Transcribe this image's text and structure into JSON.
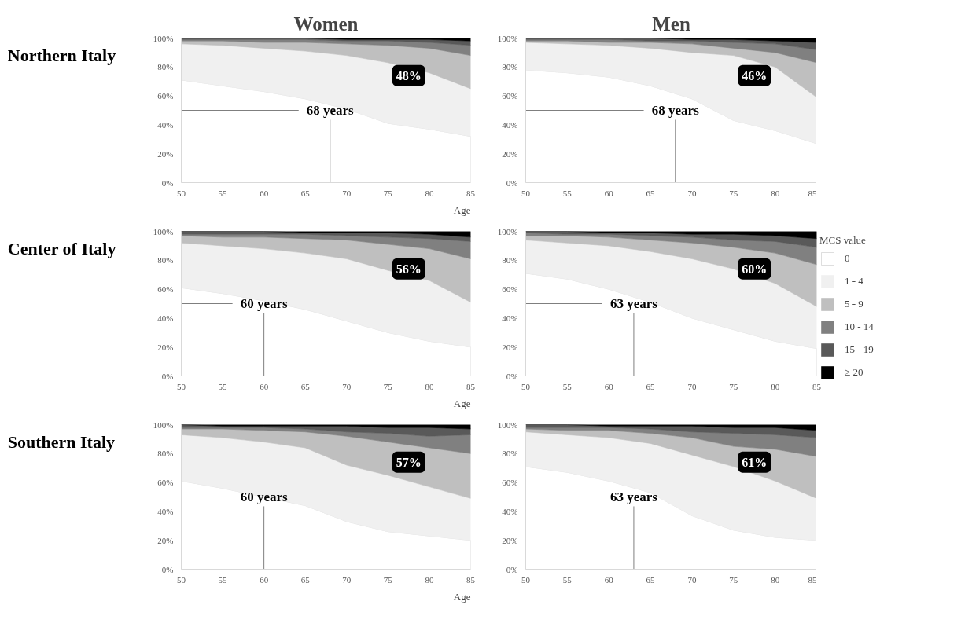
{
  "chart_data": [
    {
      "type": "area",
      "stacked": true,
      "title": "Women",
      "ylabel": "Northern Italy",
      "xlabel": "Age",
      "x": [
        50,
        55,
        60,
        65,
        70,
        75,
        80,
        85
      ],
      "xlim": [
        50,
        85
      ],
      "xticks": [
        50,
        55,
        60,
        65,
        70,
        75,
        80,
        85
      ],
      "ylim": [
        0,
        100
      ],
      "yticks": [
        {
          "value": 0,
          "label": "0%"
        },
        {
          "value": 20,
          "label": "20%"
        },
        {
          "value": 40,
          "label": "40%"
        },
        {
          "value": 60,
          "label": "60%"
        },
        {
          "value": 80,
          "label": "80%"
        },
        {
          "value": 100,
          "label": "100%"
        }
      ],
      "series": [
        {
          "color": "#ffffff",
          "values": [
            71,
            67,
            63,
            58,
            51,
            41,
            37,
            32
          ]
        },
        {
          "color": "#f0f0f0",
          "values": [
            25,
            28,
            30,
            33,
            37,
            42,
            39,
            33
          ]
        },
        {
          "color": "#bfbfbf",
          "values": [
            2,
            3,
            4,
            6,
            8,
            12,
            17,
            23
          ]
        },
        {
          "color": "#808080",
          "values": [
            1,
            1,
            2,
            2,
            2,
            3,
            4,
            7
          ]
        },
        {
          "color": "#595959",
          "values": [
            1,
            1,
            1,
            1,
            1,
            1,
            2,
            3
          ]
        },
        {
          "color": "#000000",
          "values": [
            0,
            0,
            0,
            0,
            1,
            1,
            1,
            2
          ]
        }
      ],
      "ref_lines": [
        {
          "axis": "x",
          "value": 68
        },
        {
          "axis": "y",
          "value": 50
        }
      ],
      "annotations": [
        "68 years",
        "48%"
      ]
    },
    {
      "type": "area",
      "stacked": true,
      "title": "Men",
      "x": [
        50,
        55,
        60,
        65,
        70,
        75,
        80,
        85
      ],
      "xlim": [
        50,
        85
      ],
      "xticks": [
        50,
        55,
        60,
        65,
        70,
        75,
        80,
        85
      ],
      "ylim": [
        0,
        100
      ],
      "yticks": [
        {
          "value": 0,
          "label": "0%"
        },
        {
          "value": 20,
          "label": "20%"
        },
        {
          "value": 40,
          "label": "40%"
        },
        {
          "value": 60,
          "label": "60%"
        },
        {
          "value": 80,
          "label": "80%"
        },
        {
          "value": 100,
          "label": "100%"
        }
      ],
      "series": [
        {
          "color": "#ffffff",
          "values": [
            78,
            76,
            73,
            67,
            58,
            43,
            36,
            27
          ]
        },
        {
          "color": "#f0f0f0",
          "values": [
            19,
            20,
            22,
            26,
            32,
            45,
            44,
            32
          ]
        },
        {
          "color": "#bfbfbf",
          "values": [
            1,
            2,
            2,
            4,
            6,
            5,
            10,
            24
          ]
        },
        {
          "color": "#808080",
          "values": [
            1,
            1,
            2,
            1,
            2,
            4,
            6,
            9
          ]
        },
        {
          "color": "#595959",
          "values": [
            1,
            1,
            1,
            2,
            1,
            2,
            2,
            5
          ]
        },
        {
          "color": "#000000",
          "values": [
            0,
            0,
            0,
            0,
            1,
            1,
            2,
            3
          ]
        }
      ],
      "ref_lines": [
        {
          "axis": "x",
          "value": 68
        },
        {
          "axis": "y",
          "value": 50
        }
      ],
      "annotations": [
        "68 years",
        "46%"
      ]
    },
    {
      "type": "area",
      "stacked": true,
      "ylabel": "Center of Italy",
      "xlabel": "Age",
      "x": [
        50,
        55,
        60,
        65,
        70,
        75,
        80,
        85
      ],
      "xlim": [
        50,
        85
      ],
      "xticks": [
        50,
        55,
        60,
        65,
        70,
        75,
        80,
        85
      ],
      "ylim": [
        0,
        100
      ],
      "yticks": [
        {
          "value": 0,
          "label": "0%"
        },
        {
          "value": 20,
          "label": "20%"
        },
        {
          "value": 40,
          "label": "40%"
        },
        {
          "value": 60,
          "label": "60%"
        },
        {
          "value": 80,
          "label": "80%"
        },
        {
          "value": 100,
          "label": "100%"
        }
      ],
      "series": [
        {
          "color": "#ffffff",
          "values": [
            61,
            57,
            52,
            46,
            38,
            30,
            24,
            20
          ]
        },
        {
          "color": "#f0f0f0",
          "values": [
            31,
            33,
            36,
            39,
            43,
            43,
            42,
            31
          ]
        },
        {
          "color": "#bfbfbf",
          "values": [
            5,
            6,
            8,
            10,
            13,
            18,
            22,
            30
          ]
        },
        {
          "color": "#808080",
          "values": [
            1,
            2,
            2,
            3,
            3,
            5,
            7,
            12
          ]
        },
        {
          "color": "#595959",
          "values": [
            2,
            2,
            2,
            1,
            2,
            3,
            3,
            3
          ]
        },
        {
          "color": "#000000",
          "values": [
            0,
            0,
            0,
            1,
            1,
            1,
            2,
            4
          ]
        }
      ],
      "ref_lines": [
        {
          "axis": "x",
          "value": 60
        },
        {
          "axis": "y",
          "value": 50
        }
      ],
      "annotations": [
        "60 years",
        "56%"
      ]
    },
    {
      "type": "area",
      "stacked": true,
      "legend": "right",
      "legend_title": "MCS value",
      "x": [
        50,
        55,
        60,
        65,
        70,
        75,
        80,
        85
      ],
      "xlim": [
        50,
        85
      ],
      "xticks": [
        50,
        55,
        60,
        65,
        70,
        75,
        80,
        85
      ],
      "ylim": [
        0,
        100
      ],
      "yticks": [
        {
          "value": 0,
          "label": "0%"
        },
        {
          "value": 20,
          "label": "20%"
        },
        {
          "value": 40,
          "label": "40%"
        },
        {
          "value": 60,
          "label": "60%"
        },
        {
          "value": 80,
          "label": "80%"
        },
        {
          "value": 100,
          "label": "100%"
        }
      ],
      "series": [
        {
          "name": "0",
          "color": "#ffffff",
          "values": [
            71,
            67,
            60,
            51,
            40,
            32,
            24,
            19
          ]
        },
        {
          "name": "1 - 4",
          "color": "#f0f0f0",
          "values": [
            23,
            25,
            30,
            35,
            41,
            42,
            40,
            29
          ]
        },
        {
          "name": "5 - 9",
          "color": "#bfbfbf",
          "values": [
            3,
            5,
            6,
            8,
            11,
            15,
            21,
            29
          ]
        },
        {
          "name": "10 - 14",
          "color": "#808080",
          "values": [
            2,
            1,
            2,
            3,
            4,
            5,
            8,
            12
          ]
        },
        {
          "name": "15 - 19",
          "color": "#595959",
          "values": [
            1,
            2,
            1,
            2,
            2,
            4,
            4,
            6
          ]
        },
        {
          "name": "≥ 20",
          "color": "#000000",
          "values": [
            0,
            0,
            1,
            1,
            2,
            2,
            3,
            5
          ]
        }
      ],
      "ref_lines": [
        {
          "axis": "x",
          "value": 63
        },
        {
          "axis": "y",
          "value": 50
        }
      ],
      "annotations": [
        "63 years",
        "60%"
      ]
    },
    {
      "type": "area",
      "stacked": true,
      "ylabel": "Southern Italy",
      "xlabel": "Age",
      "x": [
        50,
        55,
        60,
        65,
        70,
        75,
        80,
        85
      ],
      "xlim": [
        50,
        85
      ],
      "xticks": [
        50,
        55,
        60,
        65,
        70,
        75,
        80,
        85
      ],
      "ylim": [
        0,
        100
      ],
      "yticks": [
        {
          "value": 0,
          "label": "0%"
        },
        {
          "value": 20,
          "label": "20%"
        },
        {
          "value": 40,
          "label": "40%"
        },
        {
          "value": 60,
          "label": "60%"
        },
        {
          "value": 80,
          "label": "80%"
        },
        {
          "value": 100,
          "label": "100%"
        }
      ],
      "series": [
        {
          "color": "#ffffff",
          "values": [
            61,
            56,
            50,
            44,
            33,
            26,
            23,
            20
          ]
        },
        {
          "color": "#f0f0f0",
          "values": [
            32,
            35,
            38,
            40,
            39,
            39,
            34,
            29
          ]
        },
        {
          "color": "#bfbfbf",
          "values": [
            4,
            6,
            8,
            11,
            20,
            23,
            27,
            31
          ]
        },
        {
          "color": "#808080",
          "values": [
            1,
            1,
            2,
            2,
            3,
            6,
            8,
            13
          ]
        },
        {
          "color": "#595959",
          "values": [
            2,
            1,
            1,
            2,
            4,
            4,
            6,
            4
          ]
        },
        {
          "color": "#000000",
          "values": [
            0,
            1,
            1,
            1,
            1,
            2,
            2,
            3
          ]
        }
      ],
      "ref_lines": [
        {
          "axis": "x",
          "value": 60
        },
        {
          "axis": "y",
          "value": 50
        }
      ],
      "annotations": [
        "60 years",
        "57%"
      ]
    },
    {
      "type": "area",
      "stacked": true,
      "x": [
        50,
        55,
        60,
        65,
        70,
        75,
        80,
        85
      ],
      "xlim": [
        50,
        85
      ],
      "xticks": [
        50,
        55,
        60,
        65,
        70,
        75,
        80,
        85
      ],
      "ylim": [
        0,
        100
      ],
      "yticks": [
        {
          "value": 0,
          "label": "0%"
        },
        {
          "value": 20,
          "label": "20%"
        },
        {
          "value": 40,
          "label": "40%"
        },
        {
          "value": 60,
          "label": "60%"
        },
        {
          "value": 80,
          "label": "80%"
        },
        {
          "value": 100,
          "label": "100%"
        }
      ],
      "series": [
        {
          "color": "#ffffff",
          "values": [
            71,
            67,
            61,
            53,
            37,
            27,
            22,
            20
          ]
        },
        {
          "color": "#f0f0f0",
          "values": [
            24,
            26,
            30,
            34,
            42,
            44,
            39,
            29
          ]
        },
        {
          "color": "#bfbfbf",
          "values": [
            2,
            3,
            5,
            7,
            12,
            14,
            22,
            29
          ]
        },
        {
          "color": "#808080",
          "values": [
            1,
            2,
            2,
            3,
            4,
            9,
            10,
            13
          ]
        },
        {
          "color": "#595959",
          "values": [
            2,
            2,
            1,
            2,
            4,
            4,
            5,
            5
          ]
        },
        {
          "color": "#000000",
          "values": [
            0,
            0,
            1,
            1,
            1,
            2,
            2,
            4
          ]
        }
      ],
      "ref_lines": [
        {
          "axis": "x",
          "value": 63
        },
        {
          "axis": "y",
          "value": 50
        }
      ],
      "annotations": [
        "63 years",
        "61%"
      ]
    }
  ]
}
